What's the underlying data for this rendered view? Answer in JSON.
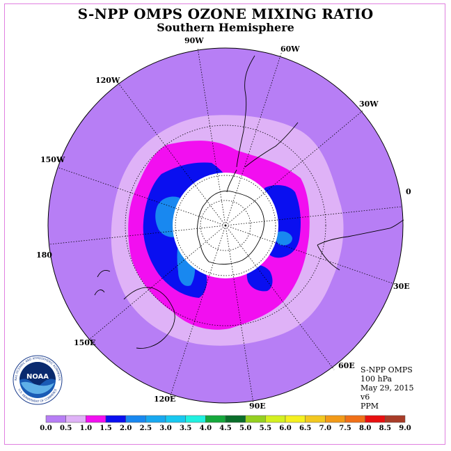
{
  "title": "S-NPP OMPS OZONE MIXING RATIO",
  "subtitle": "Southern Hemisphere",
  "info": {
    "instrument": "S-NPP OMPS",
    "level": "100 hPa",
    "date": "May 29, 2015",
    "version": "v6",
    "units": "PPM"
  },
  "longitude_labels": [
    "90W",
    "60W",
    "30W",
    "0",
    "30E",
    "60E",
    "90E",
    "120E",
    "150E",
    "180",
    "150W",
    "120W"
  ],
  "colorbar": {
    "ticks": [
      "0.0",
      "0.5",
      "1.0",
      "1.5",
      "2.0",
      "2.5",
      "3.0",
      "3.5",
      "4.0",
      "4.5",
      "5.0",
      "5.5",
      "6.0",
      "6.5",
      "7.0",
      "7.5",
      "8.0",
      "8.5",
      "9.0"
    ],
    "colors": [
      "#b77ef5",
      "#dfb2f7",
      "#f20ff0",
      "#0a0ff0",
      "#1888f0",
      "#18a8f0",
      "#18c8f0",
      "#20f0e0",
      "#15a83c",
      "#0a6e2a",
      "#95d020",
      "#d4f020",
      "#f5f020",
      "#f2c820",
      "#f29a18",
      "#f07018",
      "#e81010",
      "#a83c28"
    ]
  },
  "map_colors": {
    "background": "#b77ef5",
    "light_band": "#dfb2f7",
    "magenta_band": "#f20ff0",
    "blue_band": "#0a0ff0",
    "light_blue_band": "#1888f0",
    "missing_data": "#ffffff"
  },
  "logo": {
    "name": "NOAA",
    "ring_text": "NATIONAL OCEANIC AND ATMOSPHERIC ADMINISTRATION",
    "lower_text": "U.S. DEPARTMENT OF COMMERCE"
  }
}
